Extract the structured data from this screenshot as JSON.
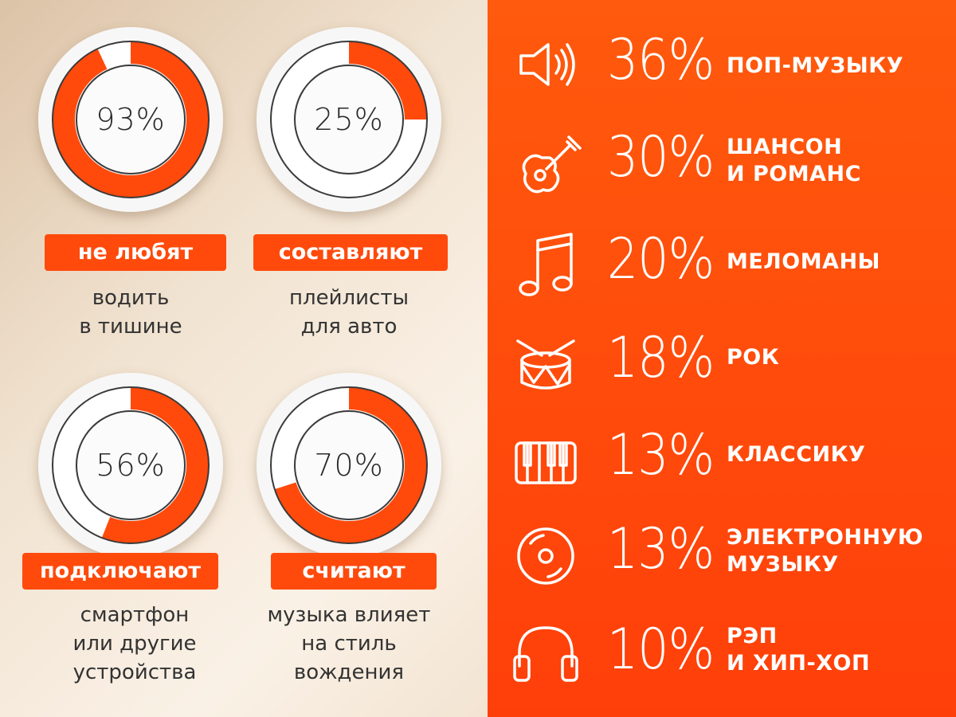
{
  "chart_data": [
    {
      "type": "donut",
      "panel": "left",
      "items": [
        {
          "value": 93,
          "label": "93%",
          "badge": "не любят",
          "caption": "водить\nв тишине"
        },
        {
          "value": 25,
          "label": "25%",
          "badge": "составляют",
          "caption": "плейлисты\nдля авто"
        },
        {
          "value": 56,
          "label": "56%",
          "badge": "подключают",
          "caption": "смартфон\nили другие\nустройства"
        },
        {
          "value": 70,
          "label": "70%",
          "badge": "считают",
          "caption": "музыка влияет\nна стиль\nвождения"
        }
      ]
    },
    {
      "type": "table",
      "panel": "right",
      "rows": [
        {
          "icon": "speaker-icon",
          "value": 36,
          "value_text": "36%",
          "label": "ПОП-МУЗЫКУ"
        },
        {
          "icon": "guitar-icon",
          "value": 30,
          "value_text": "30%",
          "label": "ШАНСОН\nИ РОМАНС"
        },
        {
          "icon": "music-note-icon",
          "value": 20,
          "value_text": "20%",
          "label": "МЕЛОМАНЫ"
        },
        {
          "icon": "drum-icon",
          "value": 18,
          "value_text": "18%",
          "label": "РОК"
        },
        {
          "icon": "piano-keys-icon",
          "value": 13,
          "value_text": "13%",
          "label": "КЛАССИКУ"
        },
        {
          "icon": "disc-icon",
          "value": 13,
          "value_text": "13%",
          "label": "ЭЛЕКТРОННУЮ\nМУЗЫКУ"
        },
        {
          "icon": "headphones-icon",
          "value": 10,
          "value_text": "10%",
          "label": "РЭП\nИ ХИП-ХОП"
        }
      ]
    }
  ],
  "colors": {
    "accent": "#ff4a0c",
    "ring_track": "#ffffff",
    "right_bg": "#ff4a0c",
    "text_dark": "#333333"
  }
}
